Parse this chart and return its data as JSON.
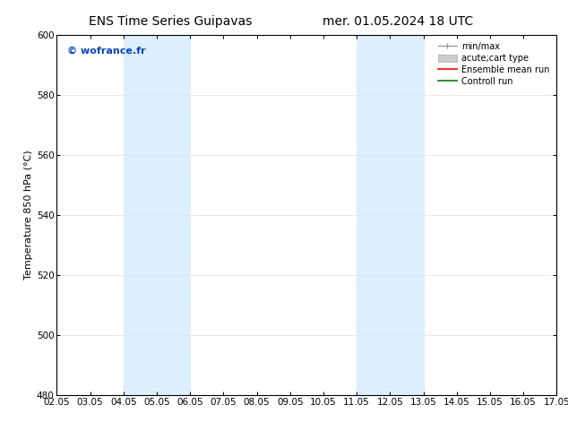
{
  "title_left": "ENS Time Series Guipavas",
  "title_right": "mer. 01.05.2024 18 UTC",
  "ylabel": "Temperature 850 hPa (°C)",
  "xlim": [
    0,
    15
  ],
  "ylim": [
    480,
    600
  ],
  "yticks": [
    480,
    500,
    520,
    540,
    560,
    580,
    600
  ],
  "xtick_labels": [
    "02.05",
    "03.05",
    "04.05",
    "05.05",
    "06.05",
    "07.05",
    "08.05",
    "09.05",
    "10.05",
    "11.05",
    "12.05",
    "13.05",
    "14.05",
    "15.05",
    "16.05",
    "17.05"
  ],
  "band1_start": 2,
  "band1_end": 4,
  "band2_start": 9,
  "band2_end": 11,
  "band_color": "#ddeeff",
  "watermark_text": "© wofrance.fr",
  "watermark_color": "#0044cc",
  "bg_color": "#ffffff",
  "spine_color": "#000000",
  "tick_fontsize": 7.5,
  "ylabel_fontsize": 8,
  "title_fontsize": 10,
  "legend_fontsize": 7,
  "minmax_color": "#999999",
  "carttype_color": "#cccccc",
  "ensemble_color": "#ff0000",
  "control_color": "#008000"
}
